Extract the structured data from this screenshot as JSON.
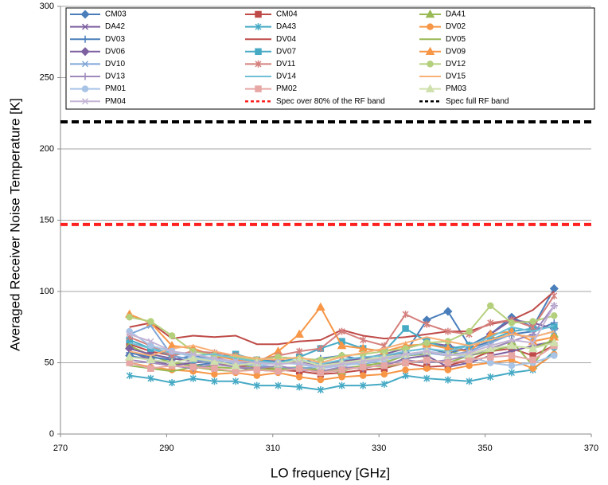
{
  "chart_data": {
    "type": "line",
    "x_label": "LO frequency [GHz]",
    "y_label": "Averaged Receiver Noise Temperature [K]",
    "xlim": [
      270,
      370
    ],
    "xticks": [
      270,
      290,
      310,
      330,
      350,
      370
    ],
    "ylim": [
      0,
      300
    ],
    "yticks": [
      0,
      50,
      100,
      150,
      200,
      250,
      300
    ],
    "grid": true,
    "x": [
      283,
      287,
      291,
      295,
      299,
      303,
      307,
      311,
      315,
      319,
      323,
      327,
      331,
      335,
      339,
      343,
      347,
      351,
      355,
      359,
      363
    ],
    "series": [
      {
        "name": "CM03",
        "color": "#4a7ebb",
        "marker": "diamond",
        "values": [
          55,
          52,
          50,
          48,
          50,
          49,
          48,
          46,
          45,
          47,
          48,
          50,
          52,
          57,
          80,
          86,
          62,
          70,
          82,
          75,
          102
        ]
      },
      {
        "name": "CM04",
        "color": "#be4b48",
        "marker": "square",
        "values": [
          63,
          58,
          55,
          52,
          50,
          48,
          47,
          45,
          44,
          42,
          43,
          45,
          46,
          50,
          47,
          48,
          52,
          58,
          60,
          55,
          62
        ]
      },
      {
        "name": "DA41",
        "color": "#98b954",
        "marker": "triangle",
        "values": [
          62,
          55,
          50,
          48,
          47,
          46,
          48,
          46,
          47,
          45,
          44,
          48,
          50,
          55,
          56,
          58,
          55,
          60,
          65,
          48,
          70
        ]
      },
      {
        "name": "DA42",
        "color": "#7d60a0",
        "marker": "x",
        "values": [
          58,
          52,
          48,
          50,
          52,
          47,
          45,
          44,
          46,
          43,
          45,
          47,
          48,
          53,
          55,
          47,
          50,
          55,
          58,
          62,
          65
        ]
      },
      {
        "name": "DA43",
        "color": "#46aac5",
        "marker": "star",
        "values": [
          41,
          39,
          36,
          39,
          37,
          37,
          34,
          34,
          33,
          31,
          34,
          34,
          35,
          41,
          39,
          38,
          37,
          40,
          43,
          45,
          58
        ]
      },
      {
        "name": "DV02",
        "color": "#f79646",
        "marker": "circle",
        "values": [
          50,
          47,
          45,
          44,
          42,
          43,
          41,
          43,
          40,
          38,
          40,
          41,
          42,
          45,
          46,
          45,
          48,
          50,
          52,
          46,
          56
        ]
      },
      {
        "name": "DV03",
        "color": "#4a7ebb",
        "marker": "plus",
        "values": [
          57,
          54,
          52,
          55,
          53,
          50,
          52,
          51,
          50,
          53,
          55,
          52,
          54,
          58,
          60,
          57,
          60,
          65,
          70,
          72,
          78
        ]
      },
      {
        "name": "DV04",
        "color": "#be4b48",
        "marker": "none",
        "values": [
          75,
          78,
          67,
          69,
          68,
          69,
          63,
          63,
          65,
          66,
          73,
          69,
          67,
          68,
          70,
          72,
          72,
          77,
          80,
          87,
          100
        ]
      },
      {
        "name": "DV05",
        "color": "#98b954",
        "marker": "none",
        "values": [
          48,
          46,
          44,
          47,
          45,
          44,
          46,
          45,
          47,
          44,
          46,
          48,
          47,
          50,
          52,
          50,
          55,
          58,
          62,
          60,
          66
        ]
      },
      {
        "name": "DV06",
        "color": "#7d60a0",
        "marker": "diamond",
        "values": [
          60,
          56,
          53,
          51,
          54,
          50,
          49,
          52,
          50,
          48,
          51,
          53,
          56,
          60,
          64,
          62,
          58,
          70,
          80,
          78,
          74
        ]
      },
      {
        "name": "DV07",
        "color": "#46aac5",
        "marker": "square",
        "values": [
          66,
          60,
          55,
          52,
          54,
          56,
          52,
          50,
          54,
          60,
          65,
          60,
          58,
          74,
          65,
          60,
          62,
          66,
          72,
          74,
          75
        ]
      },
      {
        "name": "DV09",
        "color": "#f79646",
        "marker": "triangle",
        "values": [
          84,
          78,
          62,
          60,
          55,
          52,
          50,
          58,
          70,
          89,
          62,
          60,
          58,
          62,
          63,
          60,
          58,
          70,
          72,
          65,
          68
        ]
      },
      {
        "name": "DV10",
        "color": "#7fa6d6",
        "marker": "x",
        "values": [
          70,
          76,
          55,
          52,
          50,
          49,
          48,
          47,
          46,
          47,
          50,
          49,
          52,
          55,
          57,
          55,
          58,
          64,
          70,
          68,
          72
        ]
      },
      {
        "name": "DV11",
        "color": "#d47f7c",
        "marker": "star",
        "values": [
          68,
          62,
          55,
          58,
          57,
          55,
          52,
          55,
          58,
          60,
          72,
          66,
          62,
          84,
          77,
          72,
          70,
          78,
          80,
          75,
          97
        ]
      },
      {
        "name": "DV12",
        "color": "#b5d07d",
        "marker": "circle",
        "values": [
          82,
          79,
          69,
          58,
          55,
          54,
          52,
          54,
          53,
          52,
          55,
          56,
          58,
          60,
          64,
          65,
          72,
          90,
          78,
          79,
          83
        ]
      },
      {
        "name": "DV13",
        "color": "#9e87bb",
        "marker": "plus",
        "values": [
          52,
          50,
          48,
          46,
          49,
          47,
          46,
          48,
          45,
          44,
          47,
          46,
          49,
          52,
          50,
          52,
          55,
          60,
          65,
          70,
          90
        ]
      },
      {
        "name": "DV14",
        "color": "#6fc0d6",
        "marker": "none",
        "values": [
          64,
          60,
          57,
          55,
          56,
          53,
          51,
          50,
          52,
          49,
          52,
          54,
          55,
          58,
          60,
          58,
          62,
          68,
          75,
          72,
          76
        ]
      },
      {
        "name": "DV15",
        "color": "#f9b076",
        "marker": "none",
        "values": [
          58,
          55,
          60,
          62,
          58,
          55,
          53,
          52,
          54,
          50,
          54,
          57,
          60,
          64,
          68,
          65,
          62,
          66,
          70,
          68,
          72
        ]
      },
      {
        "name": "PM01",
        "color": "#a7c3e5",
        "marker": "circle",
        "values": [
          72,
          62,
          58,
          54,
          52,
          50,
          48,
          50,
          49,
          46,
          48,
          50,
          52,
          55,
          58,
          56,
          54,
          50,
          48,
          50,
          55
        ]
      },
      {
        "name": "PM02",
        "color": "#e6a7a5",
        "marker": "square",
        "values": [
          50,
          46,
          48,
          47,
          46,
          44,
          45,
          44,
          46,
          43,
          45,
          47,
          48,
          50,
          52,
          50,
          52,
          54,
          55,
          52,
          62
        ]
      },
      {
        "name": "PM03",
        "color": "#cfe0ac",
        "marker": "triangle",
        "values": [
          54,
          52,
          50,
          53,
          51,
          48,
          50,
          49,
          52,
          48,
          50,
          52,
          54,
          56,
          58,
          55,
          56,
          60,
          62,
          60,
          64
        ]
      },
      {
        "name": "PM04",
        "color": "#c3b4d5",
        "marker": "x",
        "values": [
          70,
          65,
          58,
          56,
          53,
          51,
          50,
          49,
          50,
          47,
          49,
          51,
          53,
          56,
          58,
          55,
          57,
          62,
          66,
          64,
          90
        ]
      }
    ],
    "hlines": [
      {
        "name": "Spec over 80% of the RF band",
        "color": "#ff2020",
        "value": 147
      },
      {
        "name": "Spec full RF band",
        "color": "#000000",
        "value": 219
      }
    ]
  }
}
